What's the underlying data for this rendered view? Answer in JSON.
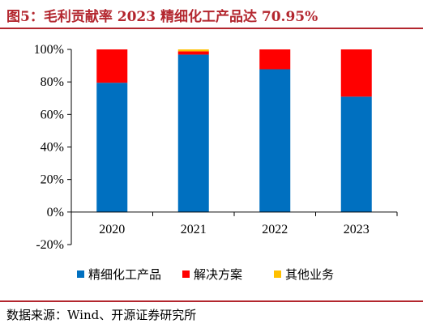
{
  "title": "图5：毛利贡献率 2023 精细化工产品达 70.95%",
  "source": "数据来源：Wind、开源证券研究所",
  "chart_data": {
    "type": "bar",
    "stacked": true,
    "title": "图5：毛利贡献率 2023 精细化工产品达 70.95%",
    "categories": [
      "2020",
      "2021",
      "2022",
      "2023"
    ],
    "ylim": [
      -20,
      100
    ],
    "yticks": [
      -20,
      0,
      20,
      40,
      60,
      80,
      100
    ],
    "ytick_labels": [
      "-20%",
      "0%",
      "20%",
      "40%",
      "60%",
      "80%",
      "100%"
    ],
    "grid": false,
    "legend_position": "bottom",
    "series": [
      {
        "name": "精细化工产品",
        "color": "#0070c0",
        "values": [
          79.5,
          96.8,
          87.8,
          70.95
        ]
      },
      {
        "name": "解决方案",
        "color": "#ff0000",
        "values": [
          20.5,
          2.0,
          12.2,
          29.05
        ]
      },
      {
        "name": "其他业务",
        "color": "#ffc000",
        "values": [
          0,
          1.2,
          0,
          0
        ]
      }
    ]
  }
}
